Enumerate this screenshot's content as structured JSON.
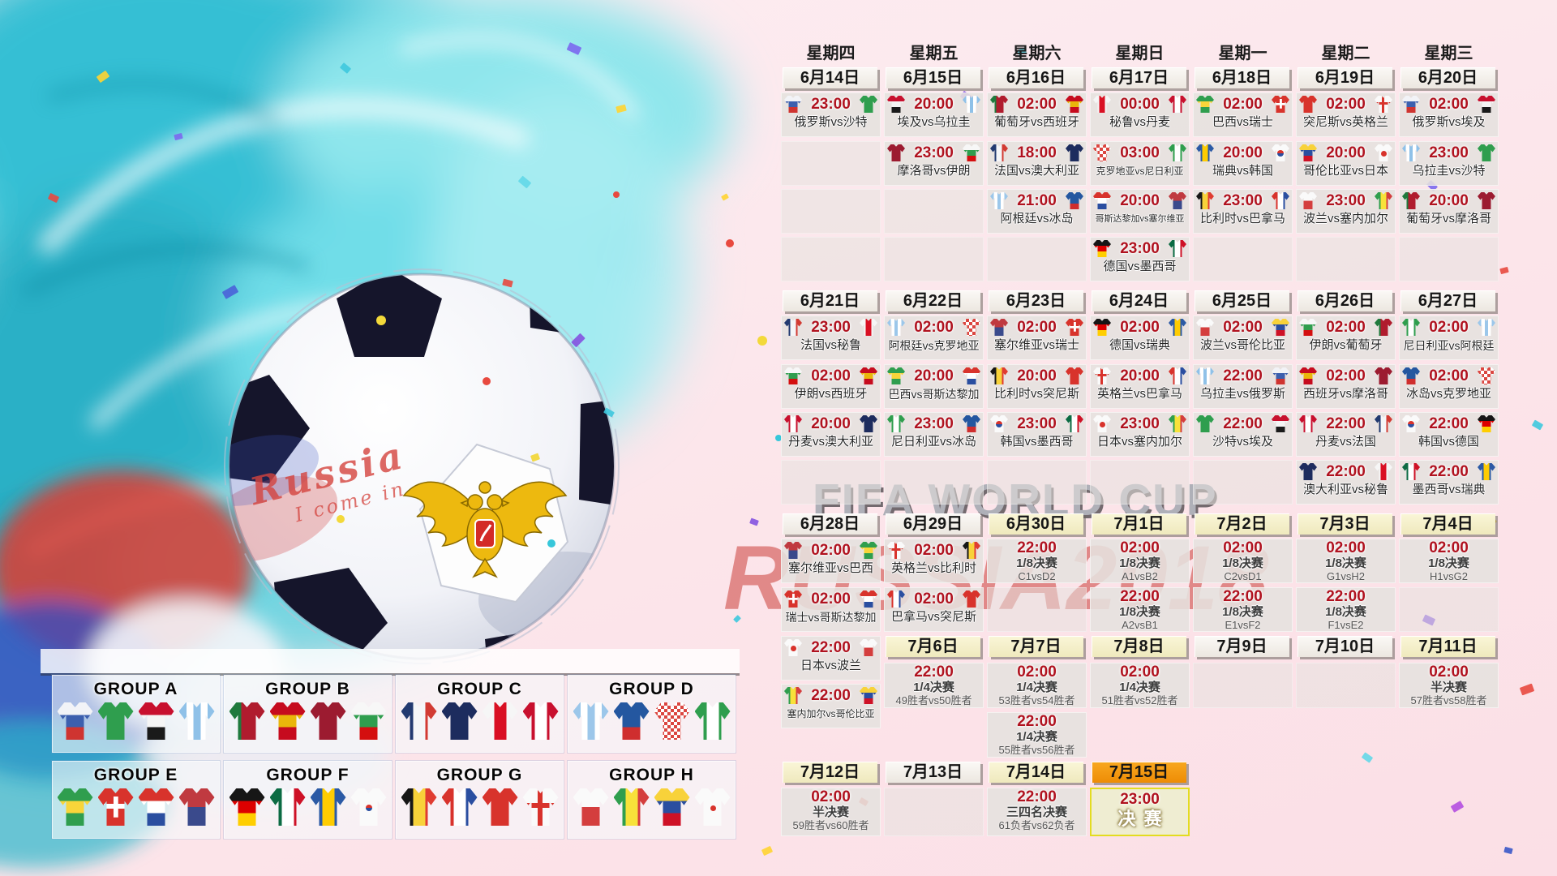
{
  "poster": {
    "fifa_watermark": "FIFA WORLD CUP",
    "russia_watermark": "RUSSIA2018",
    "ball_text_1": "Russia",
    "ball_text_2": "I come in"
  },
  "colors": {
    "accent_red": "#b0121f",
    "date_white": "#f4f0ea",
    "date_yellow": "#f6f2cd",
    "date_orange": "#f39a15",
    "cell_bg": "#e3dfdc",
    "final_bg": "#efedd2",
    "final_border": "#e3dc20",
    "watermark_red": "#c4302d",
    "watermark_gray": "#a7abb3"
  },
  "weekdays": [
    "星期四",
    "星期五",
    "星期六",
    "星期日",
    "星期一",
    "星期二",
    "星期三"
  ],
  "date_rows": [
    {
      "band": "d1",
      "dates": [
        {
          "col": 0,
          "label": "6月14日",
          "style": "white"
        },
        {
          "col": 1,
          "label": "6月15日",
          "style": "white"
        },
        {
          "col": 2,
          "label": "6月16日",
          "style": "white"
        },
        {
          "col": 3,
          "label": "6月17日",
          "style": "white"
        },
        {
          "col": 4,
          "label": "6月18日",
          "style": "white"
        },
        {
          "col": 5,
          "label": "6月19日",
          "style": "white"
        },
        {
          "col": 6,
          "label": "6月20日",
          "style": "white"
        }
      ]
    },
    {
      "band": "d2",
      "dates": [
        {
          "col": 0,
          "label": "6月21日",
          "style": "white"
        },
        {
          "col": 1,
          "label": "6月22日",
          "style": "white"
        },
        {
          "col": 2,
          "label": "6月23日",
          "style": "white"
        },
        {
          "col": 3,
          "label": "6月24日",
          "style": "white"
        },
        {
          "col": 4,
          "label": "6月25日",
          "style": "white"
        },
        {
          "col": 5,
          "label": "6月26日",
          "style": "white"
        },
        {
          "col": 6,
          "label": "6月27日",
          "style": "white"
        }
      ]
    },
    {
      "band": "d3",
      "dates": [
        {
          "col": 0,
          "label": "6月28日",
          "style": "white"
        },
        {
          "col": 1,
          "label": "6月29日",
          "style": "white"
        },
        {
          "col": 2,
          "label": "6月30日",
          "style": "yellow"
        },
        {
          "col": 3,
          "label": "7月1日",
          "style": "yellow"
        },
        {
          "col": 4,
          "label": "7月2日",
          "style": "yellow"
        },
        {
          "col": 5,
          "label": "7月3日",
          "style": "yellow"
        },
        {
          "col": 6,
          "label": "7月4日",
          "style": "yellow"
        }
      ]
    },
    {
      "band": "d4",
      "dates": [
        {
          "col": 1,
          "label": "7月6日",
          "style": "yellow"
        },
        {
          "col": 2,
          "label": "7月7日",
          "style": "yellow"
        },
        {
          "col": 3,
          "label": "7月8日",
          "style": "yellow"
        },
        {
          "col": 4,
          "label": "7月9日",
          "style": "white"
        },
        {
          "col": 5,
          "label": "7月10日",
          "style": "white"
        },
        {
          "col": 6,
          "label": "7月11日",
          "style": "yellow"
        }
      ]
    },
    {
      "band": "d5",
      "dates": [
        {
          "col": 0,
          "label": "7月12日",
          "style": "yellow"
        },
        {
          "col": 1,
          "label": "7月13日",
          "style": "white"
        },
        {
          "col": 2,
          "label": "7月14日",
          "style": "yellow"
        },
        {
          "col": 3,
          "label": "7月15日",
          "style": "orange"
        }
      ]
    }
  ],
  "cells": [
    {
      "band": "w1r1",
      "col": 0,
      "type": "match",
      "time": "23:00",
      "home": "俄罗斯",
      "away": "沙特",
      "label": "俄罗斯vs沙特"
    },
    {
      "band": "w1r1",
      "col": 1,
      "type": "match",
      "time": "20:00",
      "home": "埃及",
      "away": "乌拉圭",
      "label": "埃及vs乌拉圭"
    },
    {
      "band": "w1r1",
      "col": 2,
      "type": "match",
      "time": "02:00",
      "home": "葡萄牙",
      "away": "西班牙",
      "label": "葡萄牙vs西班牙"
    },
    {
      "band": "w1r1",
      "col": 3,
      "type": "match",
      "time": "00:00",
      "home": "秘鲁",
      "away": "丹麦",
      "label": "秘鲁vs丹麦"
    },
    {
      "band": "w1r1",
      "col": 4,
      "type": "match",
      "time": "02:00",
      "home": "巴西",
      "away": "瑞士",
      "label": "巴西vs瑞士"
    },
    {
      "band": "w1r1",
      "col": 5,
      "type": "match",
      "time": "02:00",
      "home": "突尼斯",
      "away": "英格兰",
      "label": "突尼斯vs英格兰"
    },
    {
      "band": "w1r1",
      "col": 6,
      "type": "match",
      "time": "02:00",
      "home": "俄罗斯",
      "away": "埃及",
      "label": "俄罗斯vs埃及"
    },
    {
      "band": "w1r2",
      "col": 0,
      "type": "empty"
    },
    {
      "band": "w1r2",
      "col": 1,
      "type": "match",
      "time": "23:00",
      "home": "摩洛哥",
      "away": "伊朗",
      "label": "摩洛哥vs伊朗"
    },
    {
      "band": "w1r2",
      "col": 2,
      "type": "match",
      "time": "18:00",
      "home": "法国",
      "away": "澳大利亚",
      "label": "法国vs澳大利亚"
    },
    {
      "band": "w1r2",
      "col": 3,
      "type": "match",
      "time": "03:00",
      "home": "克罗地亚",
      "away": "尼日利亚",
      "label": "克罗地亚vs尼日利亚"
    },
    {
      "band": "w1r2",
      "col": 4,
      "type": "match",
      "time": "20:00",
      "home": "瑞典",
      "away": "韩国",
      "label": "瑞典vs韩国"
    },
    {
      "band": "w1r2",
      "col": 5,
      "type": "match",
      "time": "20:00",
      "home": "哥伦比亚",
      "away": "日本",
      "label": "哥伦比亚vs日本"
    },
    {
      "band": "w1r2",
      "col": 6,
      "type": "match",
      "time": "23:00",
      "home": "乌拉圭",
      "away": "沙特",
      "label": "乌拉圭vs沙特"
    },
    {
      "band": "w1r3",
      "col": 0,
      "type": "empty"
    },
    {
      "band": "w1r3",
      "col": 1,
      "type": "empty"
    },
    {
      "band": "w1r3",
      "col": 2,
      "type": "match",
      "time": "21:00",
      "home": "阿根廷",
      "away": "冰岛",
      "label": "阿根廷vs冰岛"
    },
    {
      "band": "w1r3",
      "col": 3,
      "type": "match",
      "time": "20:00",
      "home": "哥斯达黎加",
      "away": "塞尔维亚",
      "label": "哥斯达黎加vs塞尔维亚"
    },
    {
      "band": "w1r3",
      "col": 4,
      "type": "match",
      "time": "23:00",
      "home": "比利时",
      "away": "巴拿马",
      "label": "比利时vs巴拿马"
    },
    {
      "band": "w1r3",
      "col": 5,
      "type": "match",
      "time": "23:00",
      "home": "波兰",
      "away": "塞内加尔",
      "label": "波兰vs塞内加尔"
    },
    {
      "band": "w1r3",
      "col": 6,
      "type": "match",
      "time": "20:00",
      "home": "葡萄牙",
      "away": "摩洛哥",
      "label": "葡萄牙vs摩洛哥"
    },
    {
      "band": "w1r4",
      "col": 0,
      "type": "empty"
    },
    {
      "band": "w1r4",
      "col": 1,
      "type": "empty"
    },
    {
      "band": "w1r4",
      "col": 2,
      "type": "empty"
    },
    {
      "band": "w1r4",
      "col": 3,
      "type": "match",
      "time": "23:00",
      "home": "德国",
      "away": "墨西哥",
      "label": "德国vs墨西哥"
    },
    {
      "band": "w1r4",
      "col": 4,
      "type": "empty"
    },
    {
      "band": "w1r4",
      "col": 5,
      "type": "empty"
    },
    {
      "band": "w1r4",
      "col": 6,
      "type": "empty"
    },
    {
      "band": "w2r1",
      "col": 0,
      "type": "match",
      "time": "23:00",
      "home": "法国",
      "away": "秘鲁",
      "label": "法国vs秘鲁"
    },
    {
      "band": "w2r1",
      "col": 1,
      "type": "match",
      "time": "02:00",
      "home": "阿根廷",
      "away": "克罗地亚",
      "label": "阿根廷vs克罗地亚"
    },
    {
      "band": "w2r1",
      "col": 2,
      "type": "match",
      "time": "02:00",
      "home": "塞尔维亚",
      "away": "瑞士",
      "label": "塞尔维亚vs瑞士"
    },
    {
      "band": "w2r1",
      "col": 3,
      "type": "match",
      "time": "02:00",
      "home": "德国",
      "away": "瑞典",
      "label": "德国vs瑞典"
    },
    {
      "band": "w2r1",
      "col": 4,
      "type": "match",
      "time": "02:00",
      "home": "波兰",
      "away": "哥伦比亚",
      "label": "波兰vs哥伦比亚"
    },
    {
      "band": "w2r1",
      "col": 5,
      "type": "match",
      "time": "02:00",
      "home": "伊朗",
      "away": "葡萄牙",
      "label": "伊朗vs葡萄牙"
    },
    {
      "band": "w2r1",
      "col": 6,
      "type": "match",
      "time": "02:00",
      "home": "尼日利亚",
      "away": "阿根廷",
      "label": "尼日利亚vs阿根廷"
    },
    {
      "band": "w2r2",
      "col": 0,
      "type": "match",
      "time": "02:00",
      "home": "伊朗",
      "away": "西班牙",
      "label": "伊朗vs西班牙"
    },
    {
      "band": "w2r2",
      "col": 1,
      "type": "match",
      "time": "20:00",
      "home": "巴西",
      "away": "哥斯达黎加",
      "label": "巴西vs哥斯达黎加"
    },
    {
      "band": "w2r2",
      "col": 2,
      "type": "match",
      "time": "20:00",
      "home": "比利时",
      "away": "突尼斯",
      "label": "比利时vs突尼斯"
    },
    {
      "band": "w2r2",
      "col": 3,
      "type": "match",
      "time": "20:00",
      "home": "英格兰",
      "away": "巴拿马",
      "label": "英格兰vs巴拿马"
    },
    {
      "band": "w2r2",
      "col": 4,
      "type": "match",
      "time": "22:00",
      "home": "乌拉圭",
      "away": "俄罗斯",
      "label": "乌拉圭vs俄罗斯"
    },
    {
      "band": "w2r2",
      "col": 5,
      "type": "match",
      "time": "02:00",
      "home": "西班牙",
      "away": "摩洛哥",
      "label": "西班牙vs摩洛哥"
    },
    {
      "band": "w2r2",
      "col": 6,
      "type": "match",
      "time": "02:00",
      "home": "冰岛",
      "away": "克罗地亚",
      "label": "冰岛vs克罗地亚"
    },
    {
      "band": "w2r3",
      "col": 0,
      "type": "match",
      "time": "20:00",
      "home": "丹麦",
      "away": "澳大利亚",
      "label": "丹麦vs澳大利亚"
    },
    {
      "band": "w2r3",
      "col": 1,
      "type": "match",
      "time": "23:00",
      "home": "尼日利亚",
      "away": "冰岛",
      "label": "尼日利亚vs冰岛"
    },
    {
      "band": "w2r3",
      "col": 2,
      "type": "match",
      "time": "23:00",
      "home": "韩国",
      "away": "墨西哥",
      "label": "韩国vs墨西哥"
    },
    {
      "band": "w2r3",
      "col": 3,
      "type": "match",
      "time": "23:00",
      "home": "日本",
      "away": "塞内加尔",
      "label": "日本vs塞内加尔"
    },
    {
      "band": "w2r3",
      "col": 4,
      "type": "match",
      "time": "22:00",
      "home": "沙特",
      "away": "埃及",
      "label": "沙特vs埃及"
    },
    {
      "band": "w2r3",
      "col": 5,
      "type": "match",
      "time": "22:00",
      "home": "丹麦",
      "away": "法国",
      "label": "丹麦vs法国"
    },
    {
      "band": "w2r3",
      "col": 6,
      "type": "match",
      "time": "22:00",
      "home": "韩国",
      "away": "德国",
      "label": "韩国vs德国"
    },
    {
      "band": "w2r4",
      "col": 0,
      "type": "empty"
    },
    {
      "band": "w2r4",
      "col": 1,
      "type": "empty"
    },
    {
      "band": "w2r4",
      "col": 2,
      "type": "empty"
    },
    {
      "band": "w2r4",
      "col": 3,
      "type": "empty"
    },
    {
      "band": "w2r4",
      "col": 4,
      "type": "empty"
    },
    {
      "band": "w2r4",
      "col": 5,
      "type": "match",
      "time": "22:00",
      "home": "澳大利亚",
      "away": "秘鲁",
      "label": "澳大利亚vs秘鲁"
    },
    {
      "band": "w2r4",
      "col": 6,
      "type": "match",
      "time": "22:00",
      "home": "墨西哥",
      "away": "瑞典",
      "label": "墨西哥vs瑞典"
    },
    {
      "band": "w3r1",
      "col": 0,
      "type": "match",
      "time": "02:00",
      "home": "塞尔维亚",
      "away": "巴西",
      "label": "塞尔维亚vs巴西"
    },
    {
      "band": "w3r1",
      "col": 1,
      "type": "match",
      "time": "02:00",
      "home": "英格兰",
      "away": "比利时",
      "label": "英格兰vs比利时"
    },
    {
      "band": "w3r1",
      "col": 2,
      "type": "ko",
      "time": "22:00",
      "round": "1/8决赛",
      "pair": "C1vsD2"
    },
    {
      "band": "w3r1",
      "col": 3,
      "type": "ko",
      "time": "02:00",
      "round": "1/8决赛",
      "pair": "A1vsB2"
    },
    {
      "band": "w3r1",
      "col": 4,
      "type": "ko",
      "time": "02:00",
      "round": "1/8决赛",
      "pair": "C2vsD1"
    },
    {
      "band": "w3r1",
      "col": 5,
      "type": "ko",
      "time": "02:00",
      "round": "1/8决赛",
      "pair": "G1vsH2"
    },
    {
      "band": "w3r1",
      "col": 6,
      "type": "ko",
      "time": "02:00",
      "round": "1/8决赛",
      "pair": "H1vsG2"
    },
    {
      "band": "w3r2",
      "col": 0,
      "type": "match",
      "time": "02:00",
      "home": "瑞士",
      "away": "哥斯达黎加",
      "label": "瑞士vs哥斯达黎加"
    },
    {
      "band": "w3r2",
      "col": 1,
      "type": "match",
      "time": "02:00",
      "home": "巴拿马",
      "away": "突尼斯",
      "label": "巴拿马vs突尼斯"
    },
    {
      "band": "w3r2",
      "col": 2,
      "type": "empty"
    },
    {
      "band": "w3r2",
      "col": 3,
      "type": "ko",
      "time": "22:00",
      "round": "1/8决赛",
      "pair": "A2vsB1"
    },
    {
      "band": "w3r2",
      "col": 4,
      "type": "ko",
      "time": "22:00",
      "round": "1/8决赛",
      "pair": "E1vsF2"
    },
    {
      "band": "w3r2",
      "col": 5,
      "type": "ko",
      "time": "22:00",
      "round": "1/8决赛",
      "pair": "F1vsE2"
    },
    {
      "band": "w3r2",
      "col": 6,
      "type": "empty"
    },
    {
      "band": "w3r3",
      "col": 0,
      "type": "match",
      "time": "22:00",
      "home": "日本",
      "away": "波兰",
      "label": "日本vs波兰"
    },
    {
      "band": "qf1",
      "col": 1,
      "type": "ko",
      "time": "22:00",
      "round": "1/4决赛",
      "pair": "49胜者vs50胜者"
    },
    {
      "band": "qf1",
      "col": 2,
      "type": "ko",
      "time": "02:00",
      "round": "1/4决赛",
      "pair": "53胜者vs54胜者"
    },
    {
      "band": "qf1",
      "col": 3,
      "type": "ko",
      "time": "02:00",
      "round": "1/4决赛",
      "pair": "51胜者vs52胜者"
    },
    {
      "band": "qf1",
      "col": 4,
      "type": "empty"
    },
    {
      "band": "qf1",
      "col": 5,
      "type": "empty"
    },
    {
      "band": "qf1",
      "col": 6,
      "type": "ko",
      "time": "02:00",
      "round": "半决赛",
      "pair": "57胜者vs58胜者"
    },
    {
      "band": "w3r4",
      "col": 0,
      "type": "match",
      "time": "22:00",
      "home": "塞内加尔",
      "away": "哥伦比亚",
      "label": "塞内加尔vs哥伦比亚"
    },
    {
      "band": "qf2",
      "col": 2,
      "type": "ko",
      "time": "22:00",
      "round": "1/4决赛",
      "pair": "55胜者vs56胜者"
    },
    {
      "band": "fin",
      "col": 0,
      "type": "ko",
      "time": "02:00",
      "round": "半决赛",
      "pair": "59胜者vs60胜者"
    },
    {
      "band": "fin",
      "col": 1,
      "type": "empty"
    },
    {
      "band": "fin",
      "col": 2,
      "type": "ko",
      "time": "22:00",
      "round": "三四名决赛",
      "pair": "61负者vs62负者"
    },
    {
      "band": "fin",
      "col": 3,
      "type": "final",
      "time": "23:00",
      "round": "决赛"
    }
  ],
  "groups": [
    {
      "name": "GROUP A",
      "teams": [
        "俄罗斯",
        "沙特",
        "埃及",
        "乌拉圭"
      ]
    },
    {
      "name": "GROUP B",
      "teams": [
        "葡萄牙",
        "西班牙",
        "摩洛哥",
        "伊朗"
      ]
    },
    {
      "name": "GROUP C",
      "teams": [
        "法国",
        "澳大利亚",
        "秘鲁",
        "丹麦"
      ]
    },
    {
      "name": "GROUP D",
      "teams": [
        "阿根廷",
        "冰岛",
        "克罗地亚",
        "尼日利亚"
      ]
    },
    {
      "name": "GROUP E",
      "teams": [
        "巴西",
        "瑞士",
        "哥斯达黎加",
        "塞尔维亚"
      ]
    },
    {
      "name": "GROUP F",
      "teams": [
        "德国",
        "墨西哥",
        "瑞典",
        "韩国"
      ]
    },
    {
      "name": "GROUP G",
      "teams": [
        "比利时",
        "巴拿马",
        "突尼斯",
        "英格兰"
      ]
    },
    {
      "name": "GROUP H",
      "teams": [
        "波兰",
        "塞内加尔",
        "哥伦比亚",
        "日本"
      ]
    }
  ],
  "team_colors": {
    "俄罗斯": {
      "dir": "h",
      "c": [
        "#f2f3f7",
        "#3c5fae",
        "#cf3430"
      ]
    },
    "沙特": {
      "dir": "h",
      "c": [
        "#2f9e4e"
      ]
    },
    "埃及": {
      "dir": "h",
      "c": [
        "#c8102e",
        "#f5f5f5",
        "#1a1a1a"
      ]
    },
    "乌拉圭": {
      "dir": "v",
      "c": [
        "#8fc1e8",
        "#ffffff",
        "#8fc1e8",
        "#ffffff",
        "#8fc1e8"
      ]
    },
    "葡萄牙": {
      "dir": "v",
      "c": [
        "#1f7a3d",
        "#b01c2e",
        "#b01c2e"
      ]
    },
    "西班牙": {
      "dir": "h",
      "c": [
        "#c60b1e",
        "#eab60b",
        "#c60b1e"
      ]
    },
    "摩洛哥": {
      "dir": "h",
      "c": [
        "#9c1b30"
      ]
    },
    "伊朗": {
      "dir": "h",
      "c": [
        "#f7f7f7",
        "#2f9e4e",
        "#d40f0f"
      ]
    },
    "法国": {
      "dir": "v",
      "c": [
        "#223a70",
        "#f5f6f8",
        "#d23b33"
      ]
    },
    "澳大利亚": {
      "dir": "h",
      "c": [
        "#1d2c5e"
      ]
    },
    "秘鲁": {
      "dir": "v",
      "c": [
        "#f6f6f6",
        "#d91023",
        "#f6f6f6"
      ]
    },
    "丹麦": {
      "dir": "v",
      "c": [
        "#c8102e",
        "#ffffff",
        "#c8102e"
      ]
    },
    "阿根廷": {
      "dir": "v",
      "c": [
        "#9cc7ea",
        "#ffffff",
        "#9cc7ea",
        "#ffffff",
        "#9cc7ea"
      ]
    },
    "冰岛": {
      "dir": "h",
      "c": [
        "#2457a0",
        "#2457a0",
        "#cf2e2e"
      ]
    },
    "克罗地亚": {
      "dir": "h",
      "c": [
        "#ffffff"
      ],
      "mark": "checker"
    },
    "尼日利亚": {
      "dir": "v",
      "c": [
        "#2f9e4e",
        "#ffffff",
        "#2f9e4e"
      ]
    },
    "巴西": {
      "dir": "h",
      "c": [
        "#2f9e4e",
        "#f8d53a",
        "#2f9e4e"
      ]
    },
    "瑞士": {
      "dir": "h",
      "c": [
        "#d8332c"
      ],
      "mark": "whitecross"
    },
    "哥斯达黎加": {
      "dir": "h",
      "c": [
        "#d8332c",
        "#ffffff",
        "#2a4ea0"
      ]
    },
    "塞尔维亚": {
      "dir": "h",
      "c": [
        "#c03a40",
        "#3a4a8c"
      ]
    },
    "德国": {
      "dir": "h",
      "c": [
        "#161616",
        "#dd0000",
        "#ffce00"
      ]
    },
    "墨西哥": {
      "dir": "v",
      "c": [
        "#0b6b43",
        "#ffffff",
        "#ce1126"
      ]
    },
    "瑞典": {
      "dir": "v",
      "c": [
        "#2b5aa5",
        "#fecc02",
        "#2b5aa5"
      ]
    },
    "韩国": {
      "dir": "h",
      "c": [
        "#fafafa"
      ],
      "mark": "taeguk"
    },
    "比利时": {
      "dir": "v",
      "c": [
        "#161616",
        "#f8d23a",
        "#e03c31"
      ]
    },
    "巴拿马": {
      "dir": "v",
      "c": [
        "#d8332c",
        "#ffffff",
        "#2a4ea0"
      ]
    },
    "突尼斯": {
      "dir": "h",
      "c": [
        "#d8332c"
      ]
    },
    "英格兰": {
      "dir": "h",
      "c": [
        "#fafafa"
      ],
      "mark": "redcross"
    },
    "波兰": {
      "dir": "h",
      "c": [
        "#fafafa",
        "#d43e3e"
      ]
    },
    "塞内加尔": {
      "dir": "v",
      "c": [
        "#2f9e4e",
        "#f8e23a",
        "#d43e3e"
      ]
    },
    "哥伦比亚": {
      "dir": "h",
      "c": [
        "#f8d23a",
        "#2a4ea0",
        "#ce1126"
      ]
    },
    "日本": {
      "dir": "h",
      "c": [
        "#fafafa"
      ],
      "mark": "reddot"
    }
  }
}
